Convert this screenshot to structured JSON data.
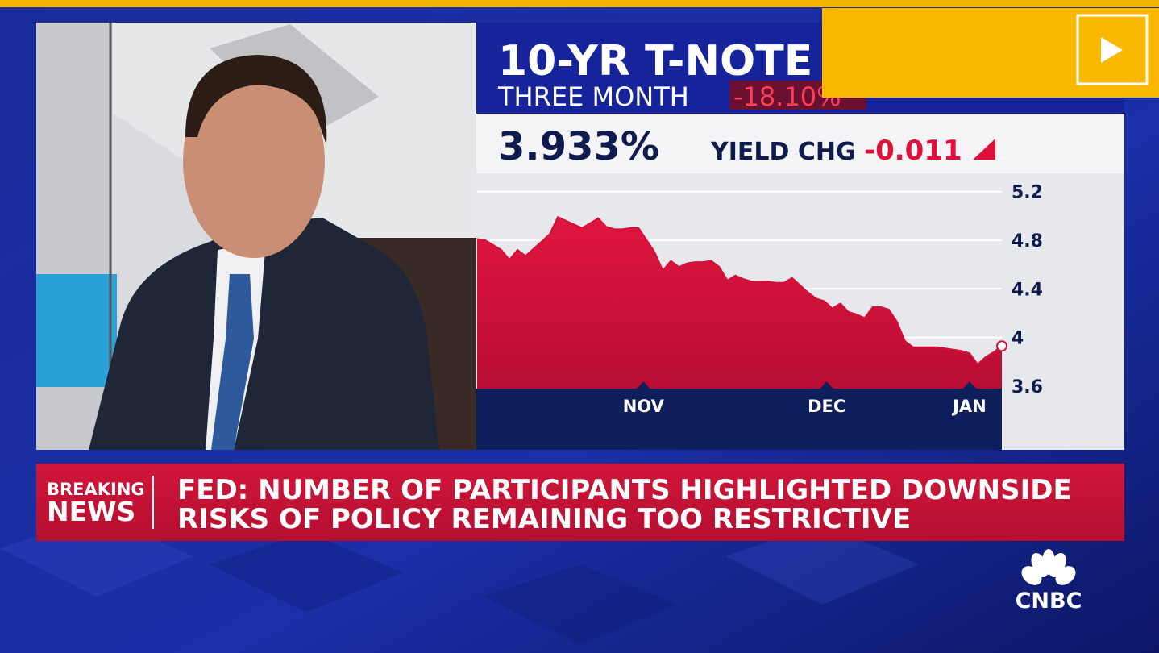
{
  "chart_data": {
    "type": "area",
    "title": "10-YR T-NOTE",
    "subtitle": "THREE MONTH",
    "period_change": "-18.10%",
    "price": "3.933%",
    "change_label": "YIELD CHG",
    "change": "-0.011",
    "values": [
      4.81,
      4.8,
      4.76,
      4.72,
      4.64,
      4.72,
      4.67,
      4.73,
      4.79,
      4.85,
      4.99,
      4.96,
      4.93,
      4.9,
      4.94,
      4.98,
      4.91,
      4.89,
      4.89,
      4.9,
      4.9,
      4.8,
      4.7,
      4.55,
      4.63,
      4.58,
      4.61,
      4.62,
      4.62,
      4.63,
      4.58,
      4.47,
      4.51,
      4.48,
      4.46,
      4.46,
      4.46,
      4.45,
      4.45,
      4.49,
      4.43,
      4.37,
      4.32,
      4.3,
      4.24,
      4.28,
      4.21,
      4.19,
      4.16,
      4.25,
      4.25,
      4.23,
      4.13,
      3.97,
      3.92,
      3.92,
      3.92,
      3.92,
      3.91,
      3.9,
      3.89,
      3.87,
      3.78,
      3.84,
      3.88,
      3.93
    ],
    "color": "#d4103c",
    "xlim": [
      0,
      65
    ],
    "xticks": [
      {
        "value": 20.6,
        "label": "NOV"
      },
      {
        "value": 43.3,
        "label": "DEC"
      },
      {
        "value": 61,
        "label": "JAN"
      }
    ],
    "ylim": [
      3.58,
      5.35
    ],
    "yticks": [
      5.2,
      4.8,
      4.4,
      4.0,
      3.6
    ],
    "grid": true
  },
  "lower_third": {
    "label_line1": "BREAKING",
    "label_line2": "NEWS",
    "headline_line1": "FED: NUMBER OF PARTICIPANTS HIGHLIGHTED DOWNSIDE",
    "headline_line2": "RISKS OF POLICY REMAINING TOO RESTRICTIVE"
  },
  "logo": {
    "text": "CNBC"
  }
}
